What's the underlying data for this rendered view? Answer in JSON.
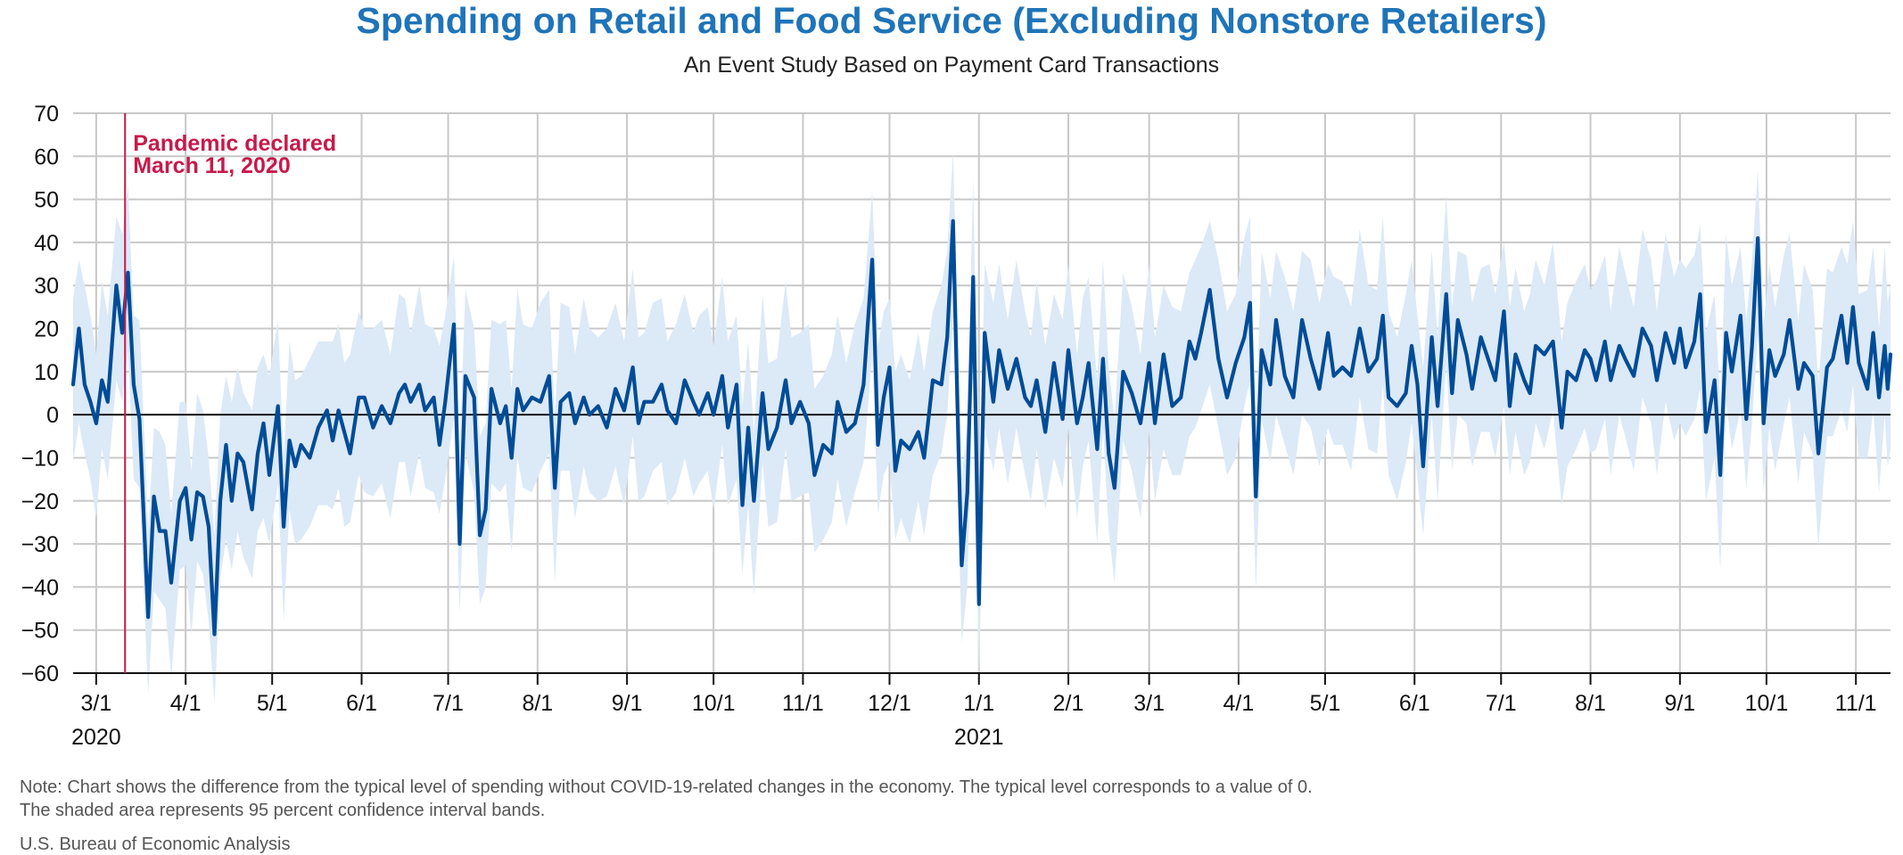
{
  "chart_data": {
    "type": "line",
    "title": "Spending on Retail and Food Service (Excluding Nonstore Retailers)",
    "subtitle": "An Event Study Based on Payment Card Transactions",
    "xlabel": "",
    "ylabel": "",
    "ylim": [
      -60,
      70
    ],
    "yticks": [
      70,
      60,
      50,
      40,
      30,
      20,
      10,
      0,
      -10,
      -20,
      -30,
      -40,
      -50,
      -60
    ],
    "xlim": [
      "2020-02-22",
      "2021-11-13"
    ],
    "xticks": [
      {
        "date": "2020-03-01",
        "label": "3/1"
      },
      {
        "date": "2020-04-01",
        "label": "4/1"
      },
      {
        "date": "2020-05-01",
        "label": "5/1"
      },
      {
        "date": "2020-06-01",
        "label": "6/1"
      },
      {
        "date": "2020-07-01",
        "label": "7/1"
      },
      {
        "date": "2020-08-01",
        "label": "8/1"
      },
      {
        "date": "2020-09-01",
        "label": "9/1"
      },
      {
        "date": "2020-10-01",
        "label": "10/1"
      },
      {
        "date": "2020-11-01",
        "label": "11/1"
      },
      {
        "date": "2020-12-01",
        "label": "12/1"
      },
      {
        "date": "2021-01-01",
        "label": "1/1"
      },
      {
        "date": "2021-02-01",
        "label": "2/1"
      },
      {
        "date": "2021-03-01",
        "label": "3/1"
      },
      {
        "date": "2021-04-01",
        "label": "4/1"
      },
      {
        "date": "2021-05-01",
        "label": "5/1"
      },
      {
        "date": "2021-06-01",
        "label": "6/1"
      },
      {
        "date": "2021-07-01",
        "label": "7/1"
      },
      {
        "date": "2021-08-01",
        "label": "8/1"
      },
      {
        "date": "2021-09-01",
        "label": "9/1"
      },
      {
        "date": "2021-10-01",
        "label": "10/1"
      },
      {
        "date": "2021-11-01",
        "label": "11/1"
      }
    ],
    "year_labels": [
      {
        "date": "2020-03-01",
        "label": "2020"
      },
      {
        "date": "2021-01-01",
        "label": "2021"
      }
    ],
    "grid": true,
    "legend": "none",
    "annotation": {
      "date": "2020-03-11",
      "line1": "Pandemic declared",
      "line2": "March 11, 2020",
      "color": "#c8194a"
    },
    "series": [
      {
        "color": "#004c97",
        "band_color": "#dce9f7",
        "band_halfwidth": 14,
        "points": [
          [
            "2020-02-22",
            7
          ],
          [
            "2020-02-24",
            20
          ],
          [
            "2020-02-26",
            7
          ],
          [
            "2020-02-28",
            3
          ],
          [
            "2020-03-01",
            -2
          ],
          [
            "2020-03-03",
            8
          ],
          [
            "2020-03-05",
            3
          ],
          [
            "2020-03-08",
            30
          ],
          [
            "2020-03-10",
            19
          ],
          [
            "2020-03-12",
            33
          ],
          [
            "2020-03-14",
            7
          ],
          [
            "2020-03-16",
            -1
          ],
          [
            "2020-03-19",
            -47
          ],
          [
            "2020-03-21",
            -19
          ],
          [
            "2020-03-23",
            -27
          ],
          [
            "2020-03-25",
            -27
          ],
          [
            "2020-03-27",
            -39
          ],
          [
            "2020-03-30",
            -20
          ],
          [
            "2020-04-01",
            -17
          ],
          [
            "2020-04-03",
            -29
          ],
          [
            "2020-04-05",
            -18
          ],
          [
            "2020-04-07",
            -19
          ],
          [
            "2020-04-09",
            -26
          ],
          [
            "2020-04-11",
            -51
          ],
          [
            "2020-04-13",
            -20
          ],
          [
            "2020-04-15",
            -7
          ],
          [
            "2020-04-17",
            -20
          ],
          [
            "2020-04-19",
            -9
          ],
          [
            "2020-04-21",
            -11
          ],
          [
            "2020-04-24",
            -22
          ],
          [
            "2020-04-26",
            -9
          ],
          [
            "2020-04-28",
            -2
          ],
          [
            "2020-04-30",
            -14
          ],
          [
            "2020-05-03",
            2
          ],
          [
            "2020-05-05",
            -26
          ],
          [
            "2020-05-07",
            -6
          ],
          [
            "2020-05-09",
            -12
          ],
          [
            "2020-05-11",
            -7
          ],
          [
            "2020-05-14",
            -10
          ],
          [
            "2020-05-17",
            -3
          ],
          [
            "2020-05-20",
            1
          ],
          [
            "2020-05-22",
            -6
          ],
          [
            "2020-05-24",
            1
          ],
          [
            "2020-05-26",
            -4
          ],
          [
            "2020-05-28",
            -9
          ],
          [
            "2020-05-31",
            4
          ],
          [
            "2020-06-02",
            4
          ],
          [
            "2020-06-05",
            -3
          ],
          [
            "2020-06-08",
            2
          ],
          [
            "2020-06-11",
            -2
          ],
          [
            "2020-06-14",
            5
          ],
          [
            "2020-06-16",
            7
          ],
          [
            "2020-06-18",
            3
          ],
          [
            "2020-06-21",
            7
          ],
          [
            "2020-06-23",
            1
          ],
          [
            "2020-06-26",
            4
          ],
          [
            "2020-06-28",
            -7
          ],
          [
            "2020-06-30",
            3
          ],
          [
            "2020-07-03",
            21
          ],
          [
            "2020-07-05",
            -30
          ],
          [
            "2020-07-07",
            9
          ],
          [
            "2020-07-10",
            4
          ],
          [
            "2020-07-12",
            -28
          ],
          [
            "2020-07-14",
            -22
          ],
          [
            "2020-07-16",
            6
          ],
          [
            "2020-07-19",
            -2
          ],
          [
            "2020-07-21",
            2
          ],
          [
            "2020-07-23",
            -10
          ],
          [
            "2020-07-25",
            6
          ],
          [
            "2020-07-27",
            1
          ],
          [
            "2020-07-30",
            4
          ],
          [
            "2020-08-02",
            3
          ],
          [
            "2020-08-05",
            9
          ],
          [
            "2020-08-07",
            -17
          ],
          [
            "2020-08-09",
            3
          ],
          [
            "2020-08-12",
            5
          ],
          [
            "2020-08-14",
            -2
          ],
          [
            "2020-08-17",
            4
          ],
          [
            "2020-08-19",
            0
          ],
          [
            "2020-08-22",
            2
          ],
          [
            "2020-08-25",
            -3
          ],
          [
            "2020-08-28",
            6
          ],
          [
            "2020-08-31",
            1
          ],
          [
            "2020-09-03",
            11
          ],
          [
            "2020-09-05",
            -2
          ],
          [
            "2020-09-07",
            3
          ],
          [
            "2020-09-10",
            3
          ],
          [
            "2020-09-13",
            7
          ],
          [
            "2020-09-15",
            1
          ],
          [
            "2020-09-18",
            -2
          ],
          [
            "2020-09-21",
            8
          ],
          [
            "2020-09-24",
            3
          ],
          [
            "2020-09-26",
            0
          ],
          [
            "2020-09-29",
            5
          ],
          [
            "2020-10-01",
            0
          ],
          [
            "2020-10-04",
            9
          ],
          [
            "2020-10-06",
            -3
          ],
          [
            "2020-10-09",
            7
          ],
          [
            "2020-10-11",
            -21
          ],
          [
            "2020-10-13",
            -3
          ],
          [
            "2020-10-15",
            -20
          ],
          [
            "2020-10-18",
            5
          ],
          [
            "2020-10-20",
            -8
          ],
          [
            "2020-10-23",
            -3
          ],
          [
            "2020-10-26",
            8
          ],
          [
            "2020-10-28",
            -2
          ],
          [
            "2020-10-31",
            3
          ],
          [
            "2020-11-03",
            -2
          ],
          [
            "2020-11-05",
            -14
          ],
          [
            "2020-11-08",
            -7
          ],
          [
            "2020-11-11",
            -9
          ],
          [
            "2020-11-13",
            3
          ],
          [
            "2020-11-16",
            -4
          ],
          [
            "2020-11-19",
            -2
          ],
          [
            "2020-11-22",
            7
          ],
          [
            "2020-11-25",
            36
          ],
          [
            "2020-11-27",
            -7
          ],
          [
            "2020-11-29",
            4
          ],
          [
            "2020-12-01",
            11
          ],
          [
            "2020-12-03",
            -13
          ],
          [
            "2020-12-05",
            -6
          ],
          [
            "2020-12-08",
            -8
          ],
          [
            "2020-12-11",
            -4
          ],
          [
            "2020-12-13",
            -10
          ],
          [
            "2020-12-16",
            8
          ],
          [
            "2020-12-19",
            7
          ],
          [
            "2020-12-21",
            18
          ],
          [
            "2020-12-23",
            45
          ],
          [
            "2020-12-25",
            -10
          ],
          [
            "2020-12-26",
            -35
          ],
          [
            "2020-12-28",
            -18
          ],
          [
            "2020-12-30",
            32
          ],
          [
            "2021-01-01",
            -44
          ],
          [
            "2021-01-03",
            19
          ],
          [
            "2021-01-06",
            3
          ],
          [
            "2021-01-08",
            15
          ],
          [
            "2021-01-11",
            6
          ],
          [
            "2021-01-14",
            13
          ],
          [
            "2021-01-17",
            4
          ],
          [
            "2021-01-19",
            2
          ],
          [
            "2021-01-21",
            8
          ],
          [
            "2021-01-24",
            -4
          ],
          [
            "2021-01-27",
            12
          ],
          [
            "2021-01-30",
            -1
          ],
          [
            "2021-02-01",
            15
          ],
          [
            "2021-02-04",
            -2
          ],
          [
            "2021-02-06",
            4
          ],
          [
            "2021-02-08",
            12
          ],
          [
            "2021-02-11",
            -8
          ],
          [
            "2021-02-13",
            13
          ],
          [
            "2021-02-15",
            -9
          ],
          [
            "2021-02-17",
            -17
          ],
          [
            "2021-02-20",
            10
          ],
          [
            "2021-02-23",
            5
          ],
          [
            "2021-02-26",
            -2
          ],
          [
            "2021-03-01",
            12
          ],
          [
            "2021-03-03",
            -2
          ],
          [
            "2021-03-06",
            14
          ],
          [
            "2021-03-09",
            2
          ],
          [
            "2021-03-12",
            4
          ],
          [
            "2021-03-15",
            17
          ],
          [
            "2021-03-17",
            13
          ],
          [
            "2021-03-19",
            19
          ],
          [
            "2021-03-22",
            29
          ],
          [
            "2021-03-25",
            13
          ],
          [
            "2021-03-28",
            4
          ],
          [
            "2021-03-31",
            12
          ],
          [
            "2021-04-03",
            18
          ],
          [
            "2021-04-05",
            26
          ],
          [
            "2021-04-07",
            -19
          ],
          [
            "2021-04-09",
            15
          ],
          [
            "2021-04-12",
            7
          ],
          [
            "2021-04-14",
            22
          ],
          [
            "2021-04-17",
            9
          ],
          [
            "2021-04-20",
            4
          ],
          [
            "2021-04-23",
            22
          ],
          [
            "2021-04-26",
            13
          ],
          [
            "2021-04-29",
            6
          ],
          [
            "2021-05-02",
            19
          ],
          [
            "2021-05-04",
            9
          ],
          [
            "2021-05-07",
            11
          ],
          [
            "2021-05-10",
            9
          ],
          [
            "2021-05-13",
            20
          ],
          [
            "2021-05-16",
            10
          ],
          [
            "2021-05-19",
            13
          ],
          [
            "2021-05-21",
            23
          ],
          [
            "2021-05-23",
            4
          ],
          [
            "2021-05-26",
            2
          ],
          [
            "2021-05-29",
            5
          ],
          [
            "2021-05-31",
            16
          ],
          [
            "2021-06-02",
            7
          ],
          [
            "2021-06-04",
            -12
          ],
          [
            "2021-06-07",
            18
          ],
          [
            "2021-06-09",
            2
          ],
          [
            "2021-06-12",
            28
          ],
          [
            "2021-06-14",
            5
          ],
          [
            "2021-06-16",
            22
          ],
          [
            "2021-06-19",
            14
          ],
          [
            "2021-06-21",
            6
          ],
          [
            "2021-06-24",
            18
          ],
          [
            "2021-06-27",
            12
          ],
          [
            "2021-06-29",
            8
          ],
          [
            "2021-07-02",
            24
          ],
          [
            "2021-07-04",
            2
          ],
          [
            "2021-07-06",
            14
          ],
          [
            "2021-07-09",
            8
          ],
          [
            "2021-07-11",
            5
          ],
          [
            "2021-07-13",
            16
          ],
          [
            "2021-07-16",
            14
          ],
          [
            "2021-07-19",
            17
          ],
          [
            "2021-07-22",
            -3
          ],
          [
            "2021-07-24",
            10
          ],
          [
            "2021-07-27",
            8
          ],
          [
            "2021-07-30",
            15
          ],
          [
            "2021-08-01",
            13
          ],
          [
            "2021-08-03",
            8
          ],
          [
            "2021-08-06",
            17
          ],
          [
            "2021-08-08",
            8
          ],
          [
            "2021-08-11",
            16
          ],
          [
            "2021-08-13",
            13
          ],
          [
            "2021-08-16",
            9
          ],
          [
            "2021-08-19",
            20
          ],
          [
            "2021-08-22",
            16
          ],
          [
            "2021-08-24",
            8
          ],
          [
            "2021-08-27",
            19
          ],
          [
            "2021-08-30",
            12
          ],
          [
            "2021-09-01",
            20
          ],
          [
            "2021-09-03",
            11
          ],
          [
            "2021-09-06",
            17
          ],
          [
            "2021-09-08",
            28
          ],
          [
            "2021-09-10",
            -4
          ],
          [
            "2021-09-13",
            8
          ],
          [
            "2021-09-15",
            -14
          ],
          [
            "2021-09-17",
            19
          ],
          [
            "2021-09-19",
            10
          ],
          [
            "2021-09-22",
            23
          ],
          [
            "2021-09-24",
            -1
          ],
          [
            "2021-09-26",
            16
          ],
          [
            "2021-09-28",
            41
          ],
          [
            "2021-09-30",
            -2
          ],
          [
            "2021-10-02",
            15
          ],
          [
            "2021-10-04",
            9
          ],
          [
            "2021-10-07",
            14
          ],
          [
            "2021-10-09",
            22
          ],
          [
            "2021-10-12",
            6
          ],
          [
            "2021-10-14",
            12
          ],
          [
            "2021-10-17",
            9
          ],
          [
            "2021-10-19",
            -9
          ],
          [
            "2021-10-22",
            11
          ],
          [
            "2021-10-24",
            13
          ],
          [
            "2021-10-27",
            23
          ],
          [
            "2021-10-29",
            12
          ],
          [
            "2021-10-31",
            25
          ],
          [
            "2021-11-02",
            12
          ],
          [
            "2021-11-05",
            6
          ],
          [
            "2021-11-07",
            19
          ],
          [
            "2021-11-09",
            4
          ],
          [
            "2021-11-11",
            16
          ],
          [
            "2021-11-12",
            6
          ],
          [
            "2021-11-13",
            14
          ]
        ]
      }
    ]
  },
  "note": {
    "line1": "Note: Chart shows the difference from the typical level of spending without COVID-19-related changes in the economy. The typical level corresponds to a value of 0.",
    "line2": "The shaded area represents 95 percent confidence interval bands."
  },
  "source": "U.S. Bureau of Economic Analysis"
}
